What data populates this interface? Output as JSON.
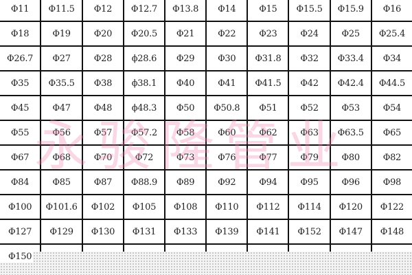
{
  "table": {
    "rows": [
      [
        "Φ11",
        "Φ11.5",
        "Φ12",
        "Φ12.7",
        "Φ13.8",
        "Φ14",
        "Φ15",
        "Φ15.5",
        "Φ15.9",
        "Φ16"
      ],
      [
        "Φ18",
        "Φ19",
        "Φ20",
        "Φ20.5",
        "Φ21",
        "Φ22",
        "Φ23",
        "Φ24",
        "Φ25",
        "Φ25.4"
      ],
      [
        "Φ26.7",
        "Φ27",
        "Φ28",
        "ϕ28.6",
        "Φ29",
        "Φ30",
        "Φ31.8",
        "Φ32",
        "Φ33.4",
        "Φ34"
      ],
      [
        "Φ35",
        "Φ35.5",
        "Φ38",
        "ϕ38.1",
        "Φ40",
        "Φ41",
        "Φ41.5",
        "Φ42",
        "Φ42.4",
        "Φ44.5"
      ],
      [
        "Φ45",
        "Φ47",
        "Φ48",
        "ϕ48.3",
        "Φ50",
        "Φ50.8",
        "Φ51",
        "Φ52",
        "Φ53",
        "Φ54"
      ],
      [
        "Φ55",
        "Φ56",
        "Φ57",
        "Φ57.2",
        "Φ58",
        "Φ60",
        "Φ62",
        "Φ63",
        "Φ63.5",
        "Φ65"
      ],
      [
        "Φ67",
        "Φ68",
        "Φ70",
        "Φ72",
        "Φ73",
        "Φ76",
        "Φ77",
        "Φ79",
        "Φ80",
        "Φ82"
      ],
      [
        "Φ84",
        "Φ85",
        "Φ87",
        "Φ88.9",
        "Φ89",
        "Φ92",
        "Φ94",
        "Φ95",
        "Φ96",
        "Φ98"
      ],
      [
        "Φ100",
        "Φ101.6",
        "Φ102",
        "Φ105",
        "Φ108",
        "Φ110",
        "Φ112",
        "Φ114",
        "Φ120",
        "Φ122"
      ],
      [
        "Φ127",
        "Φ129",
        "Φ130",
        "Φ131",
        "Φ133",
        "Φ139",
        "Φ141",
        "Φ152",
        "Φ147",
        "Φ148"
      ],
      [
        "Φ150",
        "",
        "",
        "",
        "",
        "",
        "",
        "",
        "",
        ""
      ]
    ]
  },
  "watermark": {
    "text": "永骏隆管业",
    "color": "#f082aa"
  }
}
